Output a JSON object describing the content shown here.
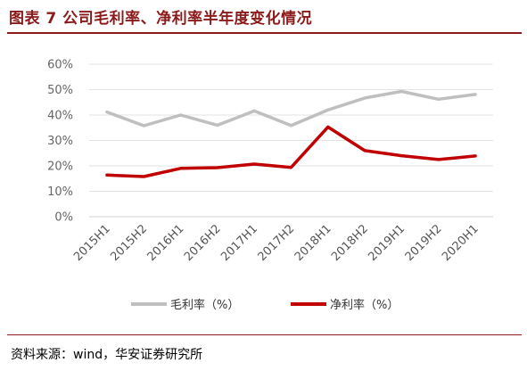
{
  "figure": {
    "title": "图表 7 公司毛利率、净利率半年度变化情况",
    "source": "资料来源：wind，华安证券研究所"
  },
  "chart_data": {
    "type": "line",
    "title": "图表 7 公司毛利率、净利率半年度变化情况",
    "xlabel": "",
    "ylabel": "",
    "ylim": [
      0,
      60
    ],
    "ytick_labels": [
      "0%",
      "10%",
      "20%",
      "30%",
      "40%",
      "50%",
      "60%"
    ],
    "yticks": [
      0,
      10,
      20,
      30,
      40,
      50,
      60
    ],
    "grid": "horizontal",
    "legend_position": "bottom-center",
    "categories": [
      "2015H1",
      "2015H2",
      "2016H1",
      "2016H2",
      "2017H1",
      "2017H2",
      "2018H1",
      "2018H2",
      "2019H1",
      "2019H2",
      "2020H1"
    ],
    "series": [
      {
        "name": "毛利率（%）",
        "color": "#bfbfbf",
        "values": [
          41.2,
          35.8,
          40.0,
          36.0,
          41.6,
          35.9,
          42.0,
          46.7,
          49.3,
          46.2,
          48.1
        ]
      },
      {
        "name": "净利率（%）",
        "color": "#c00000",
        "values": [
          16.4,
          15.8,
          19.0,
          19.3,
          20.7,
          19.4,
          35.3,
          26.0,
          24.0,
          22.5,
          23.9
        ]
      }
    ]
  }
}
